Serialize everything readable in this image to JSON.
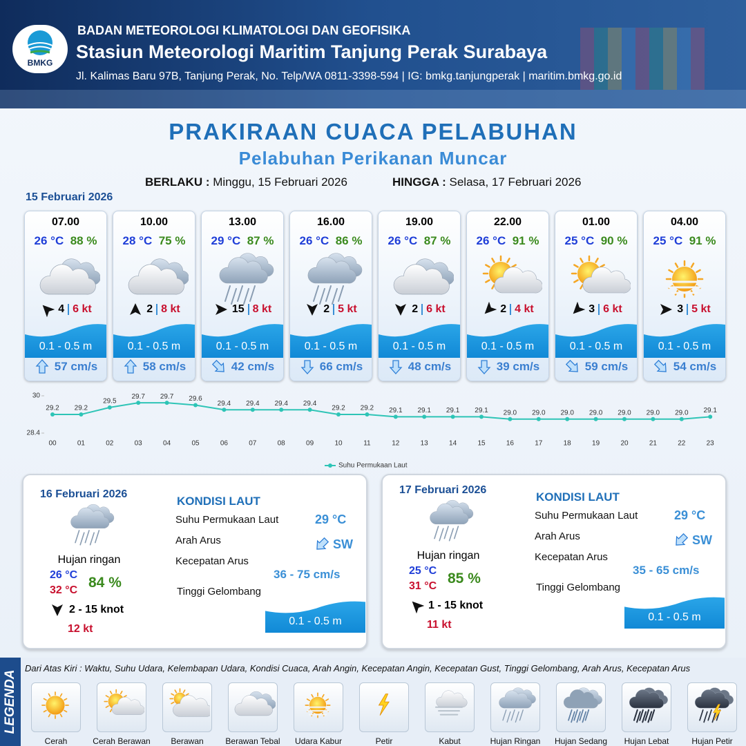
{
  "header": {
    "logo": "BMKG",
    "agency": "BADAN METEOROLOGI KLIMATOLOGI DAN GEOFISIKA",
    "station": "Stasiun Meteorologi Maritim Tanjung Perak Surabaya",
    "address": "Jl. Kalimas Baru 97B, Tanjung Perak, No. Telp/WA 0811-3398-594 | IG: bmkg.tanjungperak | maritim.bmkg.go.id"
  },
  "title": "PRAKIRAAN CUACA PELABUHAN",
  "subtitle": "Pelabuhan Perikanan Muncar",
  "validity": {
    "from_label": "BERLAKU :",
    "from": "Minggu, 15 Februari 2026",
    "to_label": "HINGGA :",
    "to": "Selasa, 17 Februari 2026"
  },
  "day1": {
    "date": "15 Februari 2026",
    "forecasts": [
      {
        "time": "07.00",
        "temp": "26 °C",
        "humidity": "88 %",
        "wind": "4",
        "gust": "6 kt",
        "wave": "0.1 - 0.5 m",
        "current": "57 cm/s"
      },
      {
        "time": "10.00",
        "temp": "28 °C",
        "humidity": "75 %",
        "wind": "2",
        "gust": "8 kt",
        "wave": "0.1 - 0.5 m",
        "current": "58 cm/s"
      },
      {
        "time": "13.00",
        "temp": "29 °C",
        "humidity": "87 %",
        "wind": "15",
        "gust": "8 kt",
        "wave": "0.1 - 0.5 m",
        "current": "42 cm/s"
      },
      {
        "time": "16.00",
        "temp": "26 °C",
        "humidity": "86 %",
        "wind": "2",
        "gust": "5 kt",
        "wave": "0.1 - 0.5 m",
        "current": "66 cm/s"
      },
      {
        "time": "19.00",
        "temp": "26 °C",
        "humidity": "87 %",
        "wind": "2",
        "gust": "6 kt",
        "wave": "0.1 - 0.5 m",
        "current": "48 cm/s"
      },
      {
        "time": "22.00",
        "temp": "26 °C",
        "humidity": "91 %",
        "wind": "2",
        "gust": "4 kt",
        "wave": "0.1 - 0.5 m",
        "current": "39 cm/s"
      },
      {
        "time": "01.00",
        "temp": "25 °C",
        "humidity": "90 %",
        "wind": "3",
        "gust": "6 kt",
        "wave": "0.1 - 0.5 m",
        "current": "59 cm/s"
      },
      {
        "time": "04.00",
        "temp": "25 °C",
        "humidity": "91 %",
        "wind": "3",
        "gust": "5 kt",
        "wave": "0.1 - 0.5 m",
        "current": "54 cm/s"
      }
    ]
  },
  "chart_data": {
    "type": "line",
    "categories": [
      "00",
      "01",
      "02",
      "03",
      "04",
      "05",
      "06",
      "07",
      "08",
      "09",
      "10",
      "11",
      "12",
      "13",
      "14",
      "15",
      "16",
      "17",
      "18",
      "19",
      "20",
      "21",
      "22",
      "23"
    ],
    "series": [
      {
        "name": "Suhu Permukaan Laut",
        "color": "#2ec4b6",
        "values": [
          29.2,
          29.2,
          29.5,
          29.7,
          29.7,
          29.6,
          29.4,
          29.4,
          29.4,
          29.4,
          29.2,
          29.2,
          29.1,
          29.1,
          29.1,
          29.1,
          29.0,
          29.0,
          29.0,
          29.0,
          29.0,
          29.0,
          29.0,
          29.1
        ],
        "value_labels": [
          "29.2",
          "29.2",
          "29.5",
          "29.7",
          "29.7",
          "29.6",
          "29.4",
          "29.4",
          "29.4",
          "29.4",
          "29.2",
          "29.2",
          "29.1",
          "29.1",
          "29.1",
          "29.1",
          "29.0",
          "29.0",
          "29.0",
          "29.0",
          "29.0",
          "29.0",
          "29.0",
          "29.1"
        ]
      }
    ],
    "ylim": [
      28.4,
      30
    ],
    "yticks": [
      28.4,
      30
    ],
    "grid": false
  },
  "outlook": [
    {
      "date": "16 Februari 2026",
      "condition": "Hujan ringan",
      "temp_min": "26 °C",
      "temp_max": "32 °C",
      "humidity": "84 %",
      "wind": "2  - 15 knot",
      "gust": "12 kt",
      "sea": {
        "heading": "KONDISI LAUT",
        "sst_label": "Suhu Permukaan Laut",
        "sst": "29 °C",
        "dir_label": "Arah Arus",
        "dir": "SW",
        "speed_label": "Kecepatan Arus",
        "speed": "36  - 75 cm/s",
        "wave_label": "Tinggi Gelombang",
        "wave": "0.1 - 0.5 m"
      }
    },
    {
      "date": "17 Februari 2026",
      "condition": "Hujan ringan",
      "temp_min": "25 °C",
      "temp_max": "31 °C",
      "humidity": "85 %",
      "wind": "1  - 15 knot",
      "gust": "11 kt",
      "sea": {
        "heading": "KONDISI LAUT",
        "sst_label": "Suhu Permukaan Laut",
        "sst": "29 °C",
        "dir_label": "Arah Arus",
        "dir": "SW",
        "speed_label": "Kecepatan Arus",
        "speed": "35 - 65 cm/s",
        "wave_label": "Tinggi Gelombang",
        "wave": "0.1 - 0.5 m"
      }
    }
  ],
  "legend": {
    "title": "LEGENDA",
    "description": "Dari Atas Kiri : Waktu, Suhu Udara, Kelembapan Udara, Kondisi Cuaca, Arah Angin, Kecepatan Angin, Kecepatan Gust, Tinggi Gelombang, Arah Arus, Kecepatan Arus",
    "items": [
      "Cerah",
      "Cerah Berawan",
      "Berawan",
      "Berawan Tebal",
      "Udara Kabur",
      "Petir",
      "Kabut",
      "Hujan Ringan",
      "Hujan Sedang",
      "Hujan Lebat",
      "Hujan Petir"
    ]
  }
}
